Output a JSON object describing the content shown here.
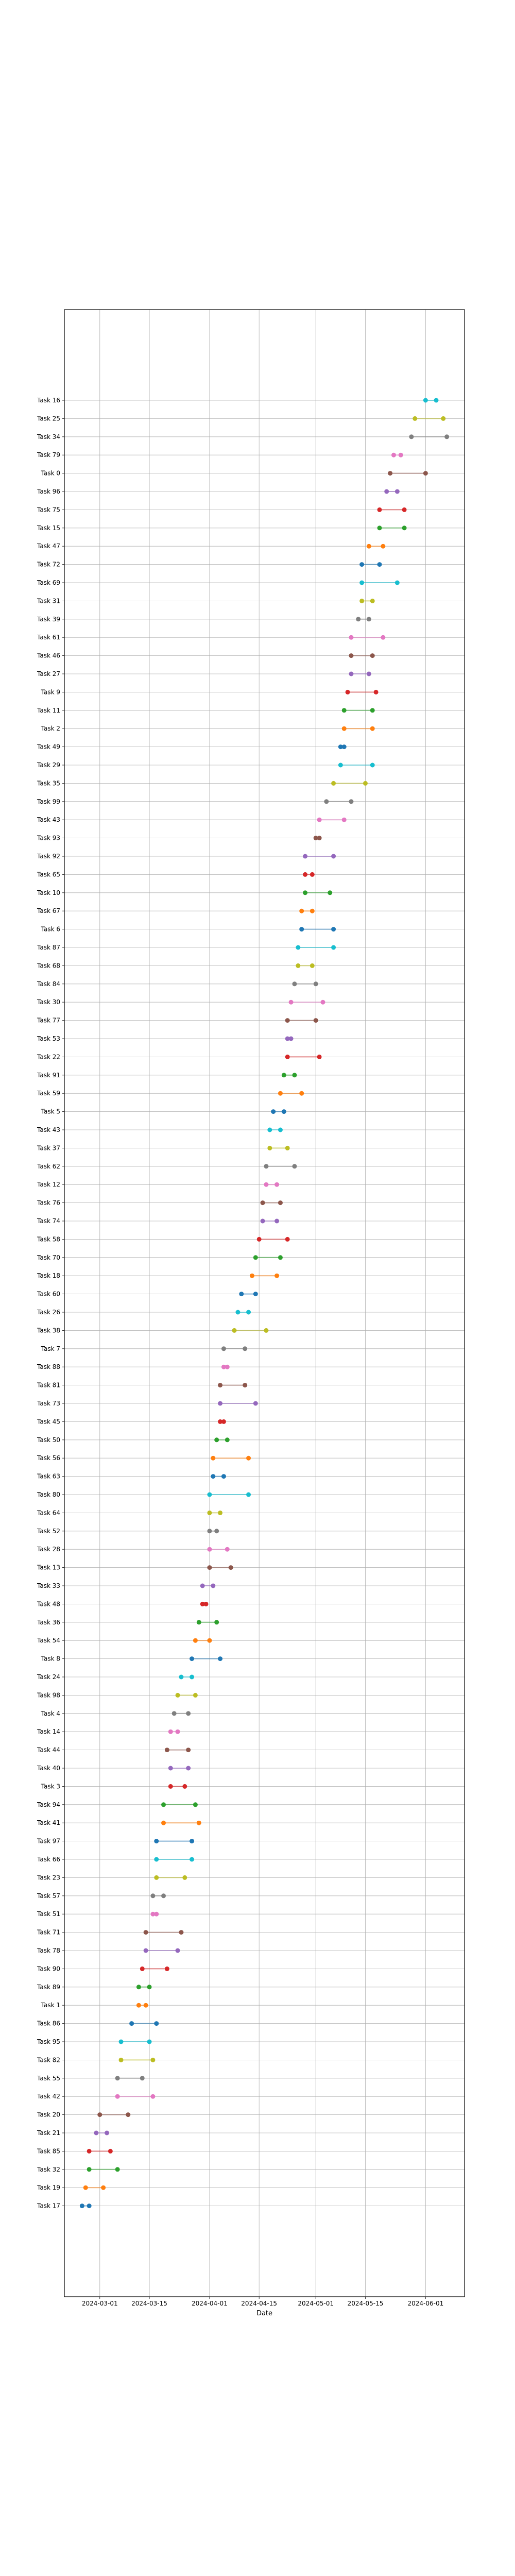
{
  "chart_data": {
    "type": "dumbbell",
    "xlabel": "Date",
    "x_ticks": [
      "2024-03-01",
      "2024-03-15",
      "2024-04-01",
      "2024-04-15",
      "2024-05-01",
      "2024-05-15",
      "2024-06-01"
    ],
    "xlim": [
      "2024-02-20",
      "2024-06-12"
    ],
    "grid": true,
    "tasks": [
      {
        "name": "Task 16",
        "start": "2024-06-01",
        "end": "2024-06-04",
        "color": "#17becf"
      },
      {
        "name": "Task 25",
        "start": "2024-05-29",
        "end": "2024-06-06",
        "color": "#bcbd22"
      },
      {
        "name": "Task 34",
        "start": "2024-05-28",
        "end": "2024-06-07",
        "color": "#7f7f7f"
      },
      {
        "name": "Task 79",
        "start": "2024-05-23",
        "end": "2024-05-25",
        "color": "#e377c2"
      },
      {
        "name": "Task 0",
        "start": "2024-05-22",
        "end": "2024-06-01",
        "color": "#8c564b"
      },
      {
        "name": "Task 96",
        "start": "2024-05-21",
        "end": "2024-05-24",
        "color": "#9467bd"
      },
      {
        "name": "Task 75",
        "start": "2024-05-19",
        "end": "2024-05-26",
        "color": "#d62728"
      },
      {
        "name": "Task 15",
        "start": "2024-05-19",
        "end": "2024-05-26",
        "color": "#2ca02c"
      },
      {
        "name": "Task 47",
        "start": "2024-05-16",
        "end": "2024-05-20",
        "color": "#ff7f0e"
      },
      {
        "name": "Task 72",
        "start": "2024-05-14",
        "end": "2024-05-19",
        "color": "#1f77b4"
      },
      {
        "name": "Task 69",
        "start": "2024-05-14",
        "end": "2024-05-24",
        "color": "#17becf"
      },
      {
        "name": "Task 31",
        "start": "2024-05-14",
        "end": "2024-05-17",
        "color": "#bcbd22"
      },
      {
        "name": "Task 39",
        "start": "2024-05-13",
        "end": "2024-05-16",
        "color": "#7f7f7f"
      },
      {
        "name": "Task 61",
        "start": "2024-05-11",
        "end": "2024-05-20",
        "color": "#e377c2"
      },
      {
        "name": "Task 46",
        "start": "2024-05-11",
        "end": "2024-05-17",
        "color": "#8c564b"
      },
      {
        "name": "Task 27",
        "start": "2024-05-11",
        "end": "2024-05-16",
        "color": "#9467bd"
      },
      {
        "name": "Task 9",
        "start": "2024-05-10",
        "end": "2024-05-18",
        "color": "#d62728"
      },
      {
        "name": "Task 11",
        "start": "2024-05-09",
        "end": "2024-05-17",
        "color": "#2ca02c"
      },
      {
        "name": "Task 2",
        "start": "2024-05-09",
        "end": "2024-05-17",
        "color": "#ff7f0e"
      },
      {
        "name": "Task 49",
        "start": "2024-05-08",
        "end": "2024-05-09",
        "color": "#1f77b4"
      },
      {
        "name": "Task 29",
        "start": "2024-05-08",
        "end": "2024-05-17",
        "color": "#17becf"
      },
      {
        "name": "Task 35",
        "start": "2024-05-06",
        "end": "2024-05-15",
        "color": "#bcbd22"
      },
      {
        "name": "Task 99",
        "start": "2024-05-04",
        "end": "2024-05-11",
        "color": "#7f7f7f"
      },
      {
        "name": "Task 43",
        "start": "2024-05-02",
        "end": "2024-05-09",
        "color": "#e377c2"
      },
      {
        "name": "Task 93",
        "start": "2024-05-01",
        "end": "2024-05-02",
        "color": "#8c564b"
      },
      {
        "name": "Task 92",
        "start": "2024-04-28",
        "end": "2024-05-06",
        "color": "#9467bd"
      },
      {
        "name": "Task 65",
        "start": "2024-04-28",
        "end": "2024-04-30",
        "color": "#d62728"
      },
      {
        "name": "Task 10",
        "start": "2024-04-28",
        "end": "2024-05-05",
        "color": "#2ca02c"
      },
      {
        "name": "Task 67",
        "start": "2024-04-27",
        "end": "2024-04-30",
        "color": "#ff7f0e"
      },
      {
        "name": "Task 6",
        "start": "2024-04-27",
        "end": "2024-05-06",
        "color": "#1f77b4"
      },
      {
        "name": "Task 87",
        "start": "2024-04-26",
        "end": "2024-05-06",
        "color": "#17becf"
      },
      {
        "name": "Task 68",
        "start": "2024-04-26",
        "end": "2024-04-30",
        "color": "#bcbd22"
      },
      {
        "name": "Task 84",
        "start": "2024-04-25",
        "end": "2024-05-01",
        "color": "#7f7f7f"
      },
      {
        "name": "Task 30",
        "start": "2024-04-24",
        "end": "2024-05-03",
        "color": "#e377c2"
      },
      {
        "name": "Task 77",
        "start": "2024-04-23",
        "end": "2024-05-01",
        "color": "#8c564b"
      },
      {
        "name": "Task 53",
        "start": "2024-04-23",
        "end": "2024-04-24",
        "color": "#9467bd"
      },
      {
        "name": "Task 22",
        "start": "2024-04-23",
        "end": "2024-05-02",
        "color": "#d62728"
      },
      {
        "name": "Task 91",
        "start": "2024-04-22",
        "end": "2024-04-25",
        "color": "#2ca02c"
      },
      {
        "name": "Task 59",
        "start": "2024-04-21",
        "end": "2024-04-27",
        "color": "#ff7f0e"
      },
      {
        "name": "Task 5",
        "start": "2024-04-19",
        "end": "2024-04-22",
        "color": "#1f77b4"
      },
      {
        "name": "Task 43",
        "start": "2024-04-18",
        "end": "2024-04-21",
        "color": "#17becf"
      },
      {
        "name": "Task 37",
        "start": "2024-04-18",
        "end": "2024-04-23",
        "color": "#bcbd22"
      },
      {
        "name": "Task 62",
        "start": "2024-04-17",
        "end": "2024-04-25",
        "color": "#7f7f7f"
      },
      {
        "name": "Task 12",
        "start": "2024-04-17",
        "end": "2024-04-20",
        "color": "#e377c2"
      },
      {
        "name": "Task 76",
        "start": "2024-04-16",
        "end": "2024-04-21",
        "color": "#8c564b"
      },
      {
        "name": "Task 74",
        "start": "2024-04-16",
        "end": "2024-04-20",
        "color": "#9467bd"
      },
      {
        "name": "Task 58",
        "start": "2024-04-15",
        "end": "2024-04-23",
        "color": "#d62728"
      },
      {
        "name": "Task 70",
        "start": "2024-04-14",
        "end": "2024-04-21",
        "color": "#2ca02c"
      },
      {
        "name": "Task 18",
        "start": "2024-04-13",
        "end": "2024-04-20",
        "color": "#ff7f0e"
      },
      {
        "name": "Task 60",
        "start": "2024-04-10",
        "end": "2024-04-14",
        "color": "#1f77b4"
      },
      {
        "name": "Task 26",
        "start": "2024-04-09",
        "end": "2024-04-12",
        "color": "#17becf"
      },
      {
        "name": "Task 38",
        "start": "2024-04-08",
        "end": "2024-04-17",
        "color": "#bcbd22"
      },
      {
        "name": "Task 7",
        "start": "2024-04-05",
        "end": "2024-04-11",
        "color": "#7f7f7f"
      },
      {
        "name": "Task 88",
        "start": "2024-04-05",
        "end": "2024-04-06",
        "color": "#e377c2"
      },
      {
        "name": "Task 81",
        "start": "2024-04-04",
        "end": "2024-04-11",
        "color": "#8c564b"
      },
      {
        "name": "Task 73",
        "start": "2024-04-04",
        "end": "2024-04-14",
        "color": "#9467bd"
      },
      {
        "name": "Task 45",
        "start": "2024-04-04",
        "end": "2024-04-05",
        "color": "#d62728"
      },
      {
        "name": "Task 50",
        "start": "2024-04-03",
        "end": "2024-04-06",
        "color": "#2ca02c"
      },
      {
        "name": "Task 56",
        "start": "2024-04-02",
        "end": "2024-04-12",
        "color": "#ff7f0e"
      },
      {
        "name": "Task 63",
        "start": "2024-04-02",
        "end": "2024-04-05",
        "color": "#1f77b4"
      },
      {
        "name": "Task 80",
        "start": "2024-04-01",
        "end": "2024-04-12",
        "color": "#17becf"
      },
      {
        "name": "Task 64",
        "start": "2024-04-01",
        "end": "2024-04-04",
        "color": "#bcbd22"
      },
      {
        "name": "Task 52",
        "start": "2024-04-01",
        "end": "2024-04-03",
        "color": "#7f7f7f"
      },
      {
        "name": "Task 28",
        "start": "2024-04-01",
        "end": "2024-04-06",
        "color": "#e377c2"
      },
      {
        "name": "Task 13",
        "start": "2024-04-01",
        "end": "2024-04-07",
        "color": "#8c564b"
      },
      {
        "name": "Task 33",
        "start": "2024-03-30",
        "end": "2024-04-02",
        "color": "#9467bd"
      },
      {
        "name": "Task 48",
        "start": "2024-03-30",
        "end": "2024-03-31",
        "color": "#d62728"
      },
      {
        "name": "Task 36",
        "start": "2024-03-29",
        "end": "2024-04-03",
        "color": "#2ca02c"
      },
      {
        "name": "Task 54",
        "start": "2024-03-28",
        "end": "2024-04-01",
        "color": "#ff7f0e"
      },
      {
        "name": "Task 8",
        "start": "2024-03-27",
        "end": "2024-04-04",
        "color": "#1f77b4"
      },
      {
        "name": "Task 24",
        "start": "2024-03-24",
        "end": "2024-03-27",
        "color": "#17becf"
      },
      {
        "name": "Task 98",
        "start": "2024-03-23",
        "end": "2024-03-28",
        "color": "#bcbd22"
      },
      {
        "name": "Task 4",
        "start": "2024-03-22",
        "end": "2024-03-26",
        "color": "#7f7f7f"
      },
      {
        "name": "Task 14",
        "start": "2024-03-21",
        "end": "2024-03-23",
        "color": "#e377c2"
      },
      {
        "name": "Task 44",
        "start": "2024-03-20",
        "end": "2024-03-26",
        "color": "#8c564b"
      },
      {
        "name": "Task 40",
        "start": "2024-03-21",
        "end": "2024-03-26",
        "color": "#9467bd"
      },
      {
        "name": "Task 3",
        "start": "2024-03-21",
        "end": "2024-03-25",
        "color": "#d62728"
      },
      {
        "name": "Task 94",
        "start": "2024-03-19",
        "end": "2024-03-28",
        "color": "#2ca02c"
      },
      {
        "name": "Task 41",
        "start": "2024-03-19",
        "end": "2024-03-29",
        "color": "#ff7f0e"
      },
      {
        "name": "Task 97",
        "start": "2024-03-17",
        "end": "2024-03-27",
        "color": "#1f77b4"
      },
      {
        "name": "Task 66",
        "start": "2024-03-17",
        "end": "2024-03-27",
        "color": "#17becf"
      },
      {
        "name": "Task 23",
        "start": "2024-03-17",
        "end": "2024-03-25",
        "color": "#bcbd22"
      },
      {
        "name": "Task 57",
        "start": "2024-03-16",
        "end": "2024-03-19",
        "color": "#7f7f7f"
      },
      {
        "name": "Task 51",
        "start": "2024-03-16",
        "end": "2024-03-17",
        "color": "#e377c2"
      },
      {
        "name": "Task 71",
        "start": "2024-03-14",
        "end": "2024-03-24",
        "color": "#8c564b"
      },
      {
        "name": "Task 78",
        "start": "2024-03-14",
        "end": "2024-03-23",
        "color": "#9467bd"
      },
      {
        "name": "Task 90",
        "start": "2024-03-13",
        "end": "2024-03-20",
        "color": "#d62728"
      },
      {
        "name": "Task 89",
        "start": "2024-03-12",
        "end": "2024-03-15",
        "color": "#2ca02c"
      },
      {
        "name": "Task 1",
        "start": "2024-03-12",
        "end": "2024-03-14",
        "color": "#ff7f0e"
      },
      {
        "name": "Task 86",
        "start": "2024-03-10",
        "end": "2024-03-17",
        "color": "#1f77b4"
      },
      {
        "name": "Task 95",
        "start": "2024-03-07",
        "end": "2024-03-15",
        "color": "#17becf"
      },
      {
        "name": "Task 82",
        "start": "2024-03-07",
        "end": "2024-03-16",
        "color": "#bcbd22"
      },
      {
        "name": "Task 55",
        "start": "2024-03-06",
        "end": "2024-03-13",
        "color": "#7f7f7f"
      },
      {
        "name": "Task 42",
        "start": "2024-03-06",
        "end": "2024-03-16",
        "color": "#e377c2"
      },
      {
        "name": "Task 20",
        "start": "2024-03-01",
        "end": "2024-03-09",
        "color": "#8c564b"
      },
      {
        "name": "Task 21",
        "start": "2024-02-29",
        "end": "2024-03-03",
        "color": "#9467bd"
      },
      {
        "name": "Task 85",
        "start": "2024-02-27",
        "end": "2024-03-04",
        "color": "#d62728"
      },
      {
        "name": "Task 32",
        "start": "2024-02-27",
        "end": "2024-03-06",
        "color": "#2ca02c"
      },
      {
        "name": "Task 19",
        "start": "2024-02-26",
        "end": "2024-03-02",
        "color": "#ff7f0e"
      },
      {
        "name": "Task 17",
        "start": "2024-02-25",
        "end": "2024-02-27",
        "color": "#1f77b4"
      }
    ]
  }
}
